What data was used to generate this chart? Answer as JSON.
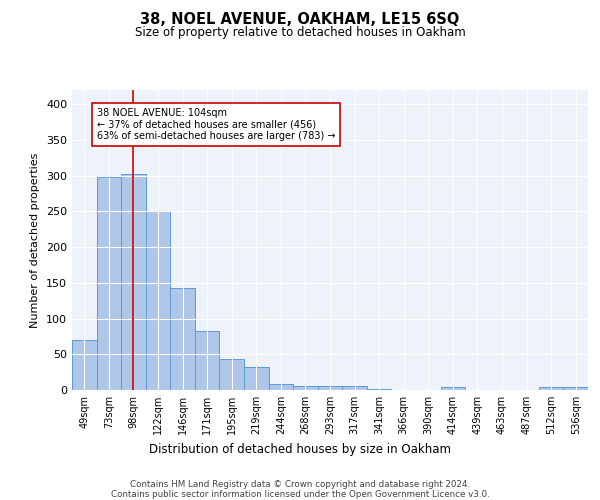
{
  "title": "38, NOEL AVENUE, OAKHAM, LE15 6SQ",
  "subtitle": "Size of property relative to detached houses in Oakham",
  "xlabel": "Distribution of detached houses by size in Oakham",
  "ylabel": "Number of detached properties",
  "categories": [
    "49sqm",
    "73sqm",
    "98sqm",
    "122sqm",
    "146sqm",
    "171sqm",
    "195sqm",
    "219sqm",
    "244sqm",
    "268sqm",
    "293sqm",
    "317sqm",
    "341sqm",
    "366sqm",
    "390sqm",
    "414sqm",
    "439sqm",
    "463sqm",
    "487sqm",
    "512sqm",
    "536sqm"
  ],
  "values": [
    70,
    298,
    303,
    250,
    143,
    82,
    43,
    32,
    9,
    5,
    5,
    5,
    2,
    0,
    0,
    4,
    0,
    0,
    0,
    4,
    4
  ],
  "bar_color": "#aec6e8",
  "bar_edge_color": "#5b9bd5",
  "ylim": [
    0,
    420
  ],
  "yticks": [
    0,
    50,
    100,
    150,
    200,
    250,
    300,
    350,
    400
  ],
  "annotation_text": "38 NOEL AVENUE: 104sqm\n← 37% of detached houses are smaller (456)\n63% of semi-detached houses are larger (783) →",
  "annotation_box_color": "#ffffff",
  "annotation_box_edge": "#cc0000",
  "vline_x_index": 2,
  "vline_color": "#cc0000",
  "background_color": "#eef2fb",
  "footer_line1": "Contains HM Land Registry data © Crown copyright and database right 2024.",
  "footer_line2": "Contains public sector information licensed under the Open Government Licence v3.0."
}
